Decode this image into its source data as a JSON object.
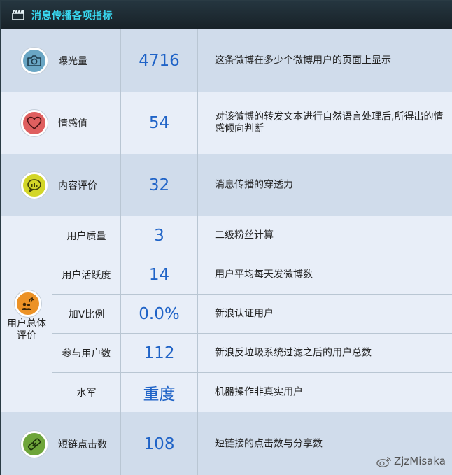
{
  "title": "消息传播各项指标",
  "colors": {
    "title_text": "#39d8f0",
    "value_text": "#1f63c7",
    "camera_circle": "#6aa6c4",
    "heart_circle": "#df5f5f",
    "chat_circle": "#d3d628",
    "user_circle": "#ec9226",
    "link_circle": "#6ea53a"
  },
  "metrics": [
    {
      "label": "曝光量",
      "value": "4716",
      "desc": "这条微博在多少个微博用户的页面上显示",
      "icon": "camera-icon"
    },
    {
      "label": "情感值",
      "value": "54",
      "desc": "对该微博的转发文本进行自然语言处理后,所得出的情感倾向判断",
      "icon": "heart-icon"
    },
    {
      "label": "内容评价",
      "value": "32",
      "desc": "消息传播的穿透力",
      "icon": "chat-bubble-icon"
    }
  ],
  "user_group": {
    "label": "用户总体评价",
    "icon": "users-signal-icon",
    "items": [
      {
        "label": "用户质量",
        "value": "3",
        "desc": "二级粉丝计算"
      },
      {
        "label": "用户活跃度",
        "value": "14",
        "desc": "用户平均每天发微博数"
      },
      {
        "label": "加V比例",
        "value": "0.0%",
        "desc": "新浪认证用户"
      },
      {
        "label": "参与用户数",
        "value": "112",
        "desc": "新浪反垃圾系统过滤之后的用户总数"
      },
      {
        "label": "水军",
        "value": "重度",
        "desc": "机器操作非真实用户"
      }
    ]
  },
  "short_link": {
    "label": "短链点击数",
    "value": "108",
    "desc": "短链接的点击数与分享数",
    "icon": "link-icon"
  },
  "watermark": "ZjzMisaka"
}
